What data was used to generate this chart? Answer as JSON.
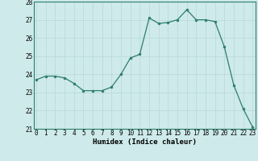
{
  "x": [
    0,
    1,
    2,
    3,
    4,
    5,
    6,
    7,
    8,
    9,
    10,
    11,
    12,
    13,
    14,
    15,
    16,
    17,
    18,
    19,
    20,
    21,
    22,
    23
  ],
  "y": [
    23.7,
    23.9,
    23.9,
    23.8,
    23.5,
    23.1,
    23.1,
    23.1,
    23.3,
    24.0,
    24.9,
    25.1,
    27.1,
    26.8,
    26.85,
    27.0,
    27.55,
    27.0,
    27.0,
    26.9,
    25.5,
    23.4,
    22.1,
    21.1
  ],
  "line_color": "#2e7d6e",
  "marker_color": "#2e7d6e",
  "bg_color": "#ceeaea",
  "grid_color": "#b8d8d8",
  "xlabel": "Humidex (Indice chaleur)",
  "ylim": [
    21,
    28
  ],
  "xlim": [
    -0.3,
    23.3
  ],
  "yticks": [
    21,
    22,
    23,
    24,
    25,
    26,
    27,
    28
  ],
  "xticks": [
    0,
    1,
    2,
    3,
    4,
    5,
    6,
    7,
    8,
    9,
    10,
    11,
    12,
    13,
    14,
    15,
    16,
    17,
    18,
    19,
    20,
    21,
    22,
    23
  ],
  "tick_fontsize": 5.5,
  "xlabel_fontsize": 6.5
}
